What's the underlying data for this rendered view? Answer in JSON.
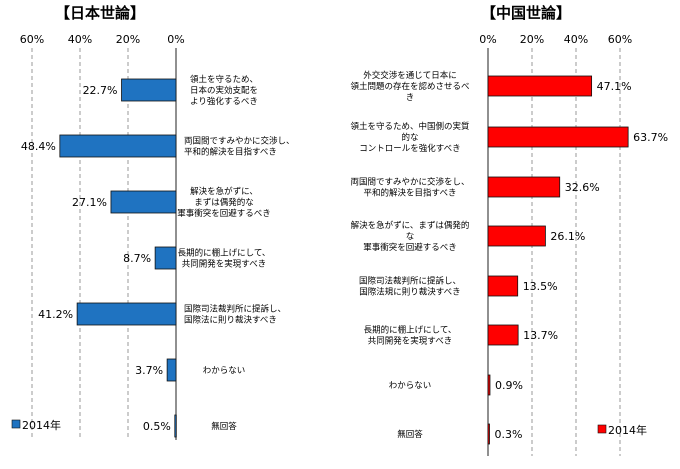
{
  "chart_data": [
    {
      "type": "bar",
      "orientation": "horizontal",
      "direction": "right-to-left",
      "title": "【日本世論】",
      "categories": [
        [
          "領土を守るため、",
          "日本の実効支配を",
          "より強化するべき"
        ],
        [
          "両国間ですみやかに交渉し、",
          "平和的解決を目指すべき"
        ],
        [
          "解決を急がずに、",
          "まずは偶発的な",
          "軍事衝突を回避するべき"
        ],
        [
          "長期的に棚上げにして、",
          "共同開発を実現すべき"
        ],
        [
          "国際司法裁判所に提訴し、",
          "国際法に則り裁決すべき"
        ],
        [
          "わからない"
        ],
        [
          "無回答"
        ]
      ],
      "series": [
        {
          "name": "2014年",
          "values": [
            22.7,
            48.4,
            27.1,
            8.7,
            41.2,
            3.7,
            0.5
          ],
          "labels": [
            "22.7%",
            "48.4%",
            "27.1%",
            "8.7%",
            "41.2%",
            "3.7%",
            "0.5%"
          ]
        }
      ],
      "xlim": [
        0,
        60
      ],
      "tick_labels": [
        "60%",
        "40%",
        "20%",
        "0%"
      ],
      "grid": "vertical-dashed",
      "legend": "bottom-left",
      "color": "#1f73c1"
    },
    {
      "type": "bar",
      "orientation": "horizontal",
      "direction": "left-to-right",
      "title": "【中国世論】",
      "categories": [
        [
          "外交交渉を通じて日本に",
          "領土問題の存在を認めさせるべ",
          "き"
        ],
        [
          "領土を守るため、中国側の実質",
          "的な",
          "コントロールを強化すべき"
        ],
        [
          "両国間ですみやかに交渉をし、",
          "平和的解決を目指すべき"
        ],
        [
          "解決を急がずに、まずは偶発的",
          "な",
          "軍事衝突を回避するべき"
        ],
        [
          "国際司法裁判所に提訴し、",
          "国際法規に則り裁決すべき"
        ],
        [
          "長期的に棚上げにして、",
          "共同開発を実現すべき"
        ],
        [
          "わからない"
        ],
        [
          "無回答"
        ]
      ],
      "series": [
        {
          "name": "2014年",
          "values": [
            47.1,
            63.7,
            32.6,
            26.1,
            13.5,
            13.7,
            0.9,
            0.3
          ],
          "labels": [
            "47.1%",
            "63.7%",
            "32.6%",
            "26.1%",
            "13.5%",
            "13.7%",
            "0.9%",
            "0.3%"
          ]
        }
      ],
      "xlim": [
        0,
        70
      ],
      "tick_labels": [
        "0%",
        "20%",
        "40%",
        "60%"
      ],
      "grid": "vertical-dashed",
      "legend": "bottom-right",
      "color": "#ff0000"
    }
  ]
}
